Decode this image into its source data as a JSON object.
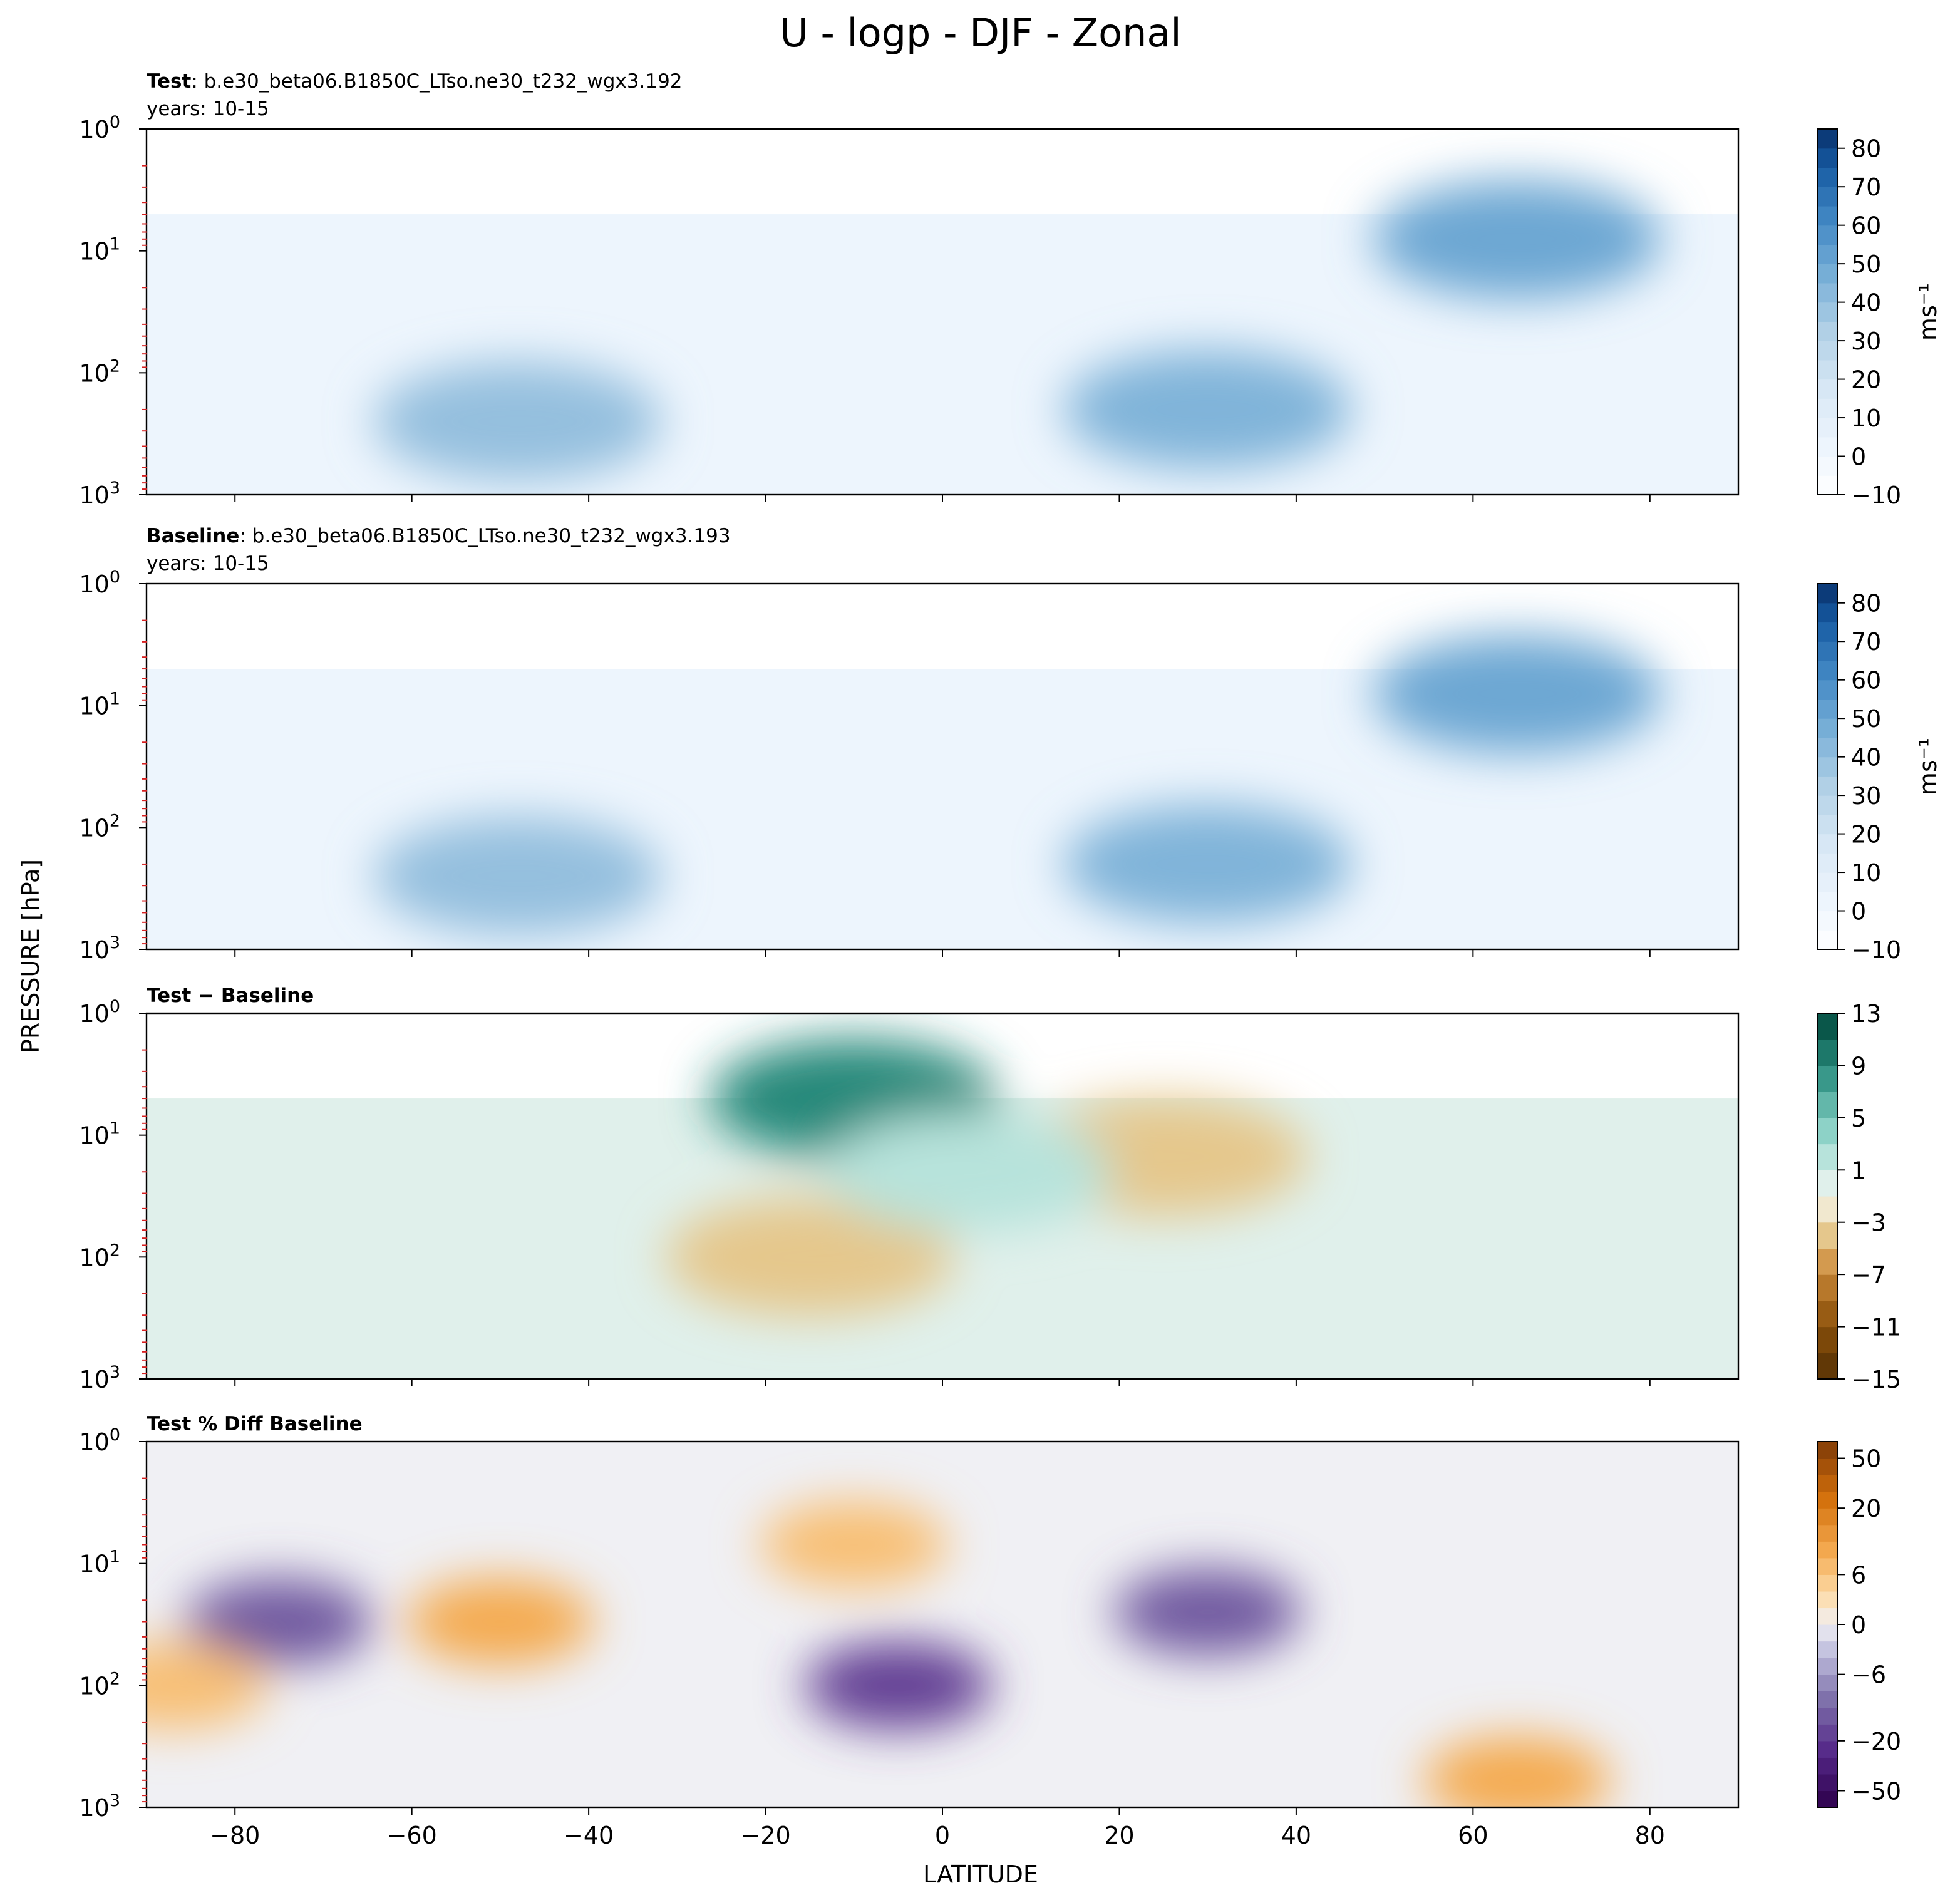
{
  "figure": {
    "title": "U - logp - DJF - Zonal",
    "xlabel": "LATITUDE",
    "ylabel": "PRESSURE [hPa]"
  },
  "chart_data": [
    {
      "type": "heatmap",
      "panel": "test",
      "title_bold": "Test",
      "title_rest": ": b.e30_beta06.B1850C_LTso.ne30_t232_wgx3.192",
      "subtitle": "years: 10-15",
      "xlim": [
        -90,
        90
      ],
      "ylim": [
        1000,
        1
      ],
      "yscale": "log",
      "x_ticks": [
        -80,
        -60,
        -40,
        -20,
        0,
        20,
        40,
        60,
        80
      ],
      "y_ticks": [
        1,
        10,
        100,
        1000
      ],
      "colorbar": {
        "label": "ms⁻¹",
        "colormap": "Blues",
        "levels": [
          -10,
          -5,
          0,
          5,
          10,
          15,
          20,
          25,
          30,
          35,
          40,
          45,
          50,
          55,
          60,
          65,
          70,
          75,
          80,
          85
        ],
        "tick_labels": [
          "80",
          "70",
          "60",
          "50",
          "40",
          "30",
          "20",
          "10",
          "0",
          "−10"
        ],
        "tick_values": [
          80,
          70,
          60,
          50,
          40,
          30,
          20,
          10,
          0,
          -10
        ]
      },
      "features": [
        {
          "lat": -48,
          "p": 250,
          "value": 40
        },
        {
          "lat": 30,
          "p": 200,
          "value": 45
        },
        {
          "lat": 65,
          "p": 8,
          "value": 50
        }
      ]
    },
    {
      "type": "heatmap",
      "panel": "baseline",
      "title_bold": "Baseline",
      "title_rest": ": b.e30_beta06.B1850C_LTso.ne30_t232_wgx3.193",
      "subtitle": "years: 10-15",
      "xlim": [
        -90,
        90
      ],
      "ylim": [
        1000,
        1
      ],
      "yscale": "log",
      "x_ticks": [
        -80,
        -60,
        -40,
        -20,
        0,
        20,
        40,
        60,
        80
      ],
      "y_ticks": [
        1,
        10,
        100,
        1000
      ],
      "colorbar": {
        "label": "ms⁻¹",
        "colormap": "Blues",
        "levels": [
          -10,
          -5,
          0,
          5,
          10,
          15,
          20,
          25,
          30,
          35,
          40,
          45,
          50,
          55,
          60,
          65,
          70,
          75,
          80,
          85
        ],
        "tick_labels": [
          "80",
          "70",
          "60",
          "50",
          "40",
          "30",
          "20",
          "10",
          "0",
          "−10"
        ],
        "tick_values": [
          80,
          70,
          60,
          50,
          40,
          30,
          20,
          10,
          0,
          -10
        ]
      },
      "features": [
        {
          "lat": -48,
          "p": 250,
          "value": 40
        },
        {
          "lat": 30,
          "p": 200,
          "value": 45
        },
        {
          "lat": 65,
          "p": 8,
          "value": 50
        }
      ]
    },
    {
      "type": "heatmap",
      "panel": "difference",
      "title_bold": "Test − Baseline",
      "xlim": [
        -90,
        90
      ],
      "ylim": [
        1000,
        1
      ],
      "yscale": "log",
      "x_ticks": [
        -80,
        -60,
        -40,
        -20,
        0,
        20,
        40,
        60,
        80
      ],
      "y_ticks": [
        1,
        10,
        100,
        1000
      ],
      "colorbar": {
        "colormap": "BrBG",
        "levels": [
          -15,
          -13,
          -11,
          -9,
          -7,
          -5,
          -3,
          -1,
          1,
          3,
          5,
          7,
          9,
          11,
          13
        ],
        "tick_labels": [
          "13",
          "9",
          "5",
          "1",
          "−3",
          "−7",
          "−11",
          "−15"
        ],
        "tick_values": [
          13,
          9,
          5,
          1,
          -3,
          -7,
          -11,
          -15
        ]
      },
      "features": [
        {
          "lat": -10,
          "p": 5,
          "value": 9
        },
        {
          "lat": -15,
          "p": 100,
          "value": -4
        },
        {
          "lat": 25,
          "p": 15,
          "value": -4
        },
        {
          "lat": 3,
          "p": 20,
          "value": 2
        }
      ]
    },
    {
      "type": "heatmap",
      "panel": "percent_difference",
      "title_bold": "Test % Diff Baseline",
      "xlim": [
        -90,
        90
      ],
      "ylim": [
        1000,
        1
      ],
      "yscale": "log",
      "x_ticks": [
        -80,
        -60,
        -40,
        -20,
        0,
        20,
        40,
        60,
        80
      ],
      "y_ticks": [
        1,
        10,
        100,
        1000
      ],
      "colorbar": {
        "colormap": "PuOr_r",
        "levels": [
          -100,
          -50,
          -40,
          -30,
          -20,
          -15,
          -10,
          -8,
          -6,
          -4,
          -2,
          0,
          2,
          4,
          6,
          8,
          10,
          15,
          20,
          30,
          40,
          50,
          100
        ],
        "tick_labels": [
          "50",
          "20",
          "6",
          "0",
          "−6",
          "−20",
          "−50"
        ],
        "tick_values": [
          50,
          20,
          6,
          0,
          -6,
          -20,
          -50
        ]
      },
      "features": [
        {
          "lat": -10,
          "p": 7,
          "value": 30
        },
        {
          "lat": -50,
          "p": 30,
          "value": 40
        },
        {
          "lat": -75,
          "p": 30,
          "value": -50
        },
        {
          "lat": -5,
          "p": 100,
          "value": -60
        },
        {
          "lat": 30,
          "p": 25,
          "value": -50
        },
        {
          "lat": 65,
          "p": 600,
          "value": 40
        },
        {
          "lat": -87,
          "p": 100,
          "value": 30
        }
      ]
    }
  ]
}
